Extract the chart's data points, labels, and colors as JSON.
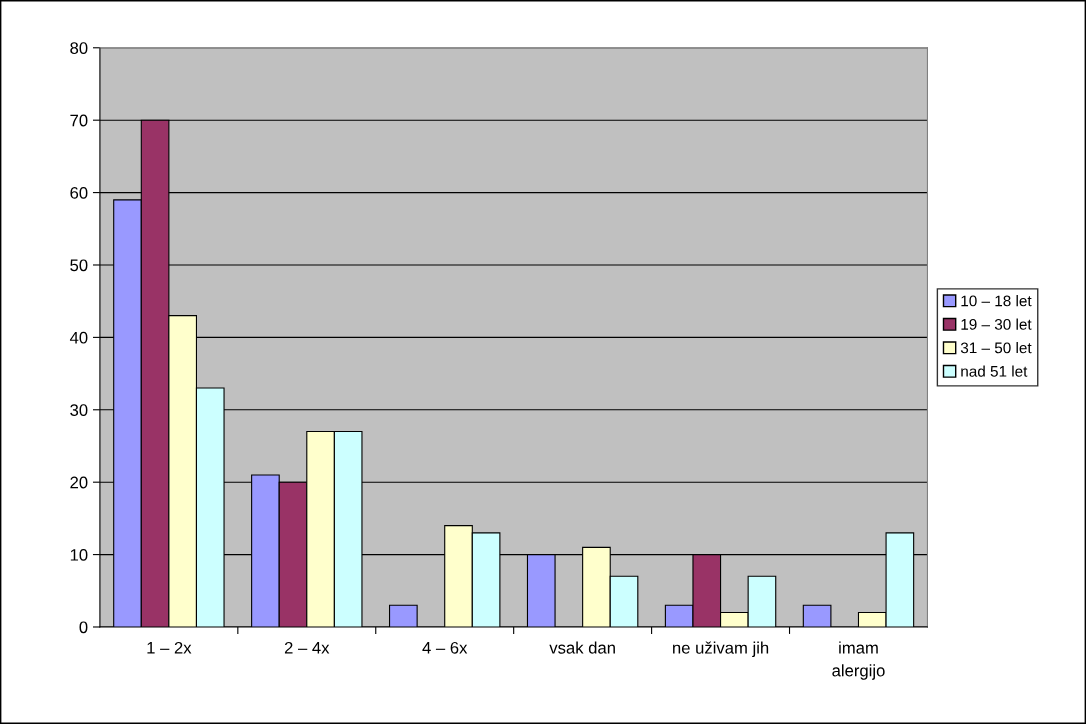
{
  "chart_data": {
    "type": "bar",
    "categories": [
      "1 – 2x",
      "2 – 4x",
      "4 – 6x",
      "vsak dan",
      "ne uživam jih",
      "imam\nalergijo"
    ],
    "series": [
      {
        "name": "10 – 18 let",
        "color": "#9999ff",
        "values": [
          59,
          21,
          3,
          10,
          3,
          3
        ]
      },
      {
        "name": "19 – 30 let",
        "color": "#993366",
        "values": [
          70,
          20,
          null,
          null,
          10,
          null
        ]
      },
      {
        "name": "31 – 50 let",
        "color": "#ffffcc",
        "values": [
          43,
          27,
          14,
          11,
          2,
          2
        ]
      },
      {
        "name": "nad 51 let",
        "color": "#ccffff",
        "values": [
          33,
          27,
          13,
          7,
          7,
          13
        ]
      }
    ],
    "ylim": [
      0,
      80
    ],
    "yticks": [
      0,
      10,
      20,
      30,
      40,
      50,
      60,
      70,
      80
    ],
    "grid": "y",
    "legend": "right"
  }
}
